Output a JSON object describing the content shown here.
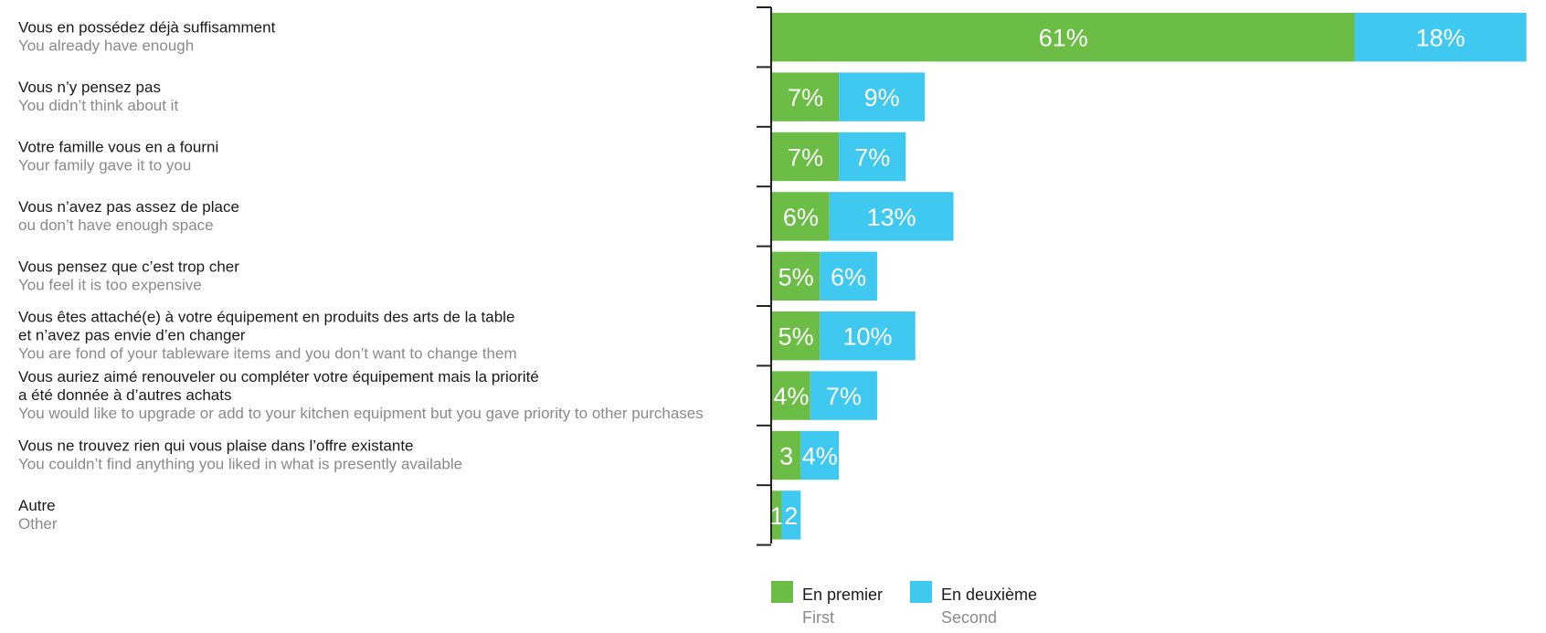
{
  "chart_data": {
    "type": "bar",
    "orientation": "horizontal",
    "stacked": true,
    "categories": [
      {
        "fr": [
          "Vous en possédez déjà suffisamment"
        ],
        "en": [
          "You already have enough"
        ]
      },
      {
        "fr": [
          "Vous n’y pensez pas"
        ],
        "en": [
          "You didn’t think about it"
        ]
      },
      {
        "fr": [
          "Votre famille vous en a fourni"
        ],
        "en": [
          "Your family gave it to you"
        ]
      },
      {
        "fr": [
          "Vous n’avez pas assez de place"
        ],
        "en": [
          "ou don’t have enough space"
        ]
      },
      {
        "fr": [
          "Vous pensez que c’est trop cher"
        ],
        "en": [
          "You feel it is too expensive"
        ]
      },
      {
        "fr": [
          "Vous êtes attaché(e) à votre équipement en produits des arts de la table",
          "et n’avez pas envie d’en changer"
        ],
        "en": [
          "You are fond of your tableware items and you don’t want to change them"
        ]
      },
      {
        "fr": [
          "Vous auriez aimé renouveler ou compléter votre équipement mais la priorité",
          "a été donnée à d’autres achats"
        ],
        "en": [
          "You would like to upgrade or add to your kitchen equipment but you gave priority to other purchases"
        ]
      },
      {
        "fr": [
          "Vous ne trouvez rien qui vous plaise dans l’offre existante"
        ],
        "en": [
          "You couldn’t find anything you liked in what is presently available"
        ]
      },
      {
        "fr": [
          "Autre"
        ],
        "en": [
          "Other"
        ]
      }
    ],
    "series": [
      {
        "name": "En premier",
        "name_en": "First",
        "color": "#6cbd45",
        "values": [
          61,
          7,
          7,
          6,
          5,
          5,
          4,
          3,
          1
        ],
        "labels": [
          "61%",
          "7%",
          "7%",
          "6%",
          "5%",
          "5%",
          "4%",
          "3",
          "1"
        ]
      },
      {
        "name": "En deuxième",
        "name_en": "Second",
        "color": "#3fc8f0",
        "values": [
          18,
          9,
          7,
          13,
          6,
          10,
          7,
          4,
          2
        ],
        "labels": [
          "18%",
          "9%",
          "7%",
          "13%",
          "6%",
          "10%",
          "7%",
          "4%",
          "2"
        ]
      }
    ],
    "xlim": [
      0,
      79
    ],
    "grid": false,
    "legend": "bottom"
  }
}
